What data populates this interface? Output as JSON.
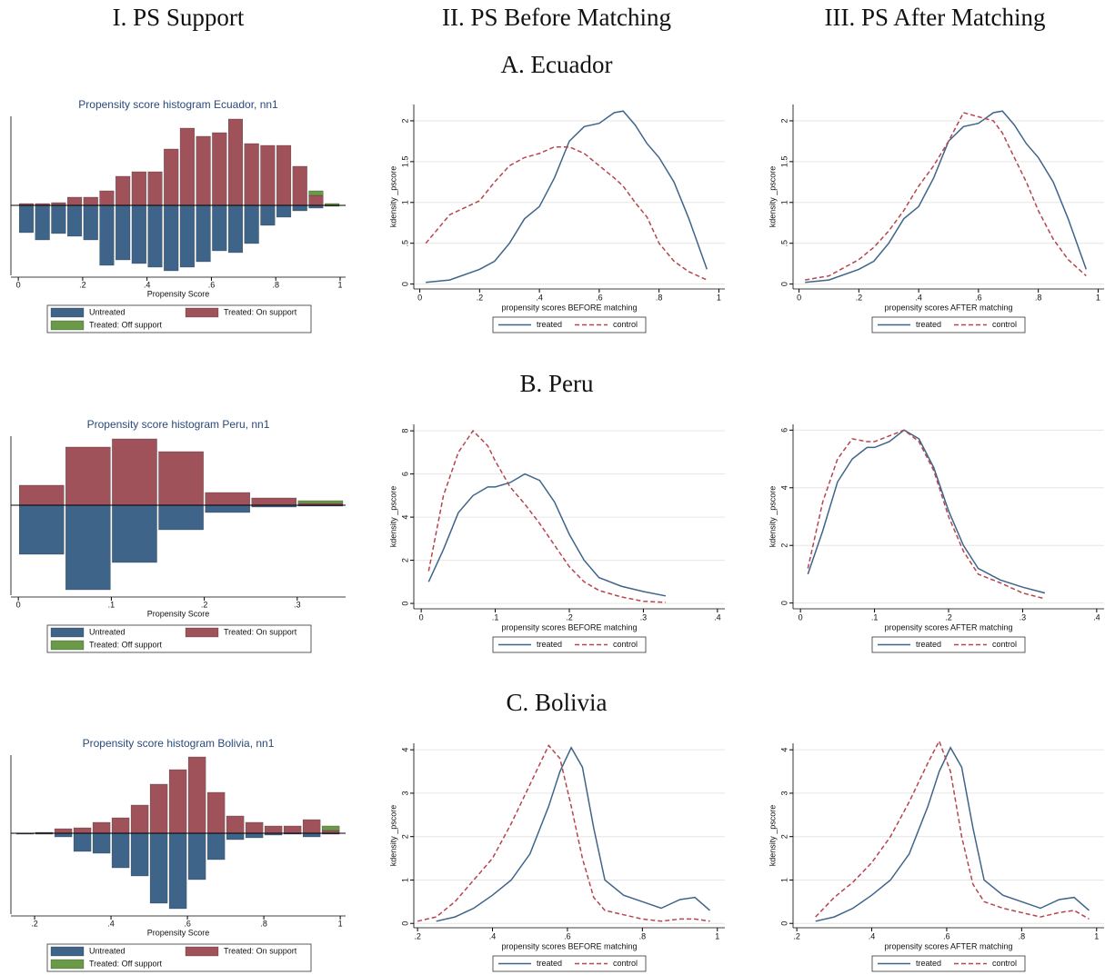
{
  "column_titles": [
    "I. PS Support",
    "II. PS Before Matching",
    "III. PS After Matching"
  ],
  "row_titles": [
    "A. Ecuador",
    "B. Peru",
    "C. Bolivia"
  ],
  "chart_data": [
    {
      "type": "histogram",
      "title": "Propensity score histogram Ecuador, nn1",
      "xlabel": "Propensity Score",
      "bins": [
        0,
        0.05,
        0.1,
        0.15,
        0.2,
        0.25,
        0.3,
        0.35,
        0.4,
        0.45,
        0.5,
        0.55,
        0.6,
        0.65,
        0.7,
        0.75,
        0.8,
        0.85,
        0.9,
        0.95,
        1
      ],
      "series": [
        {
          "name": "Untreated",
          "color": "#3e6489",
          "values": [
            -30,
            -38,
            -31,
            -34,
            -38,
            -66,
            -60,
            -64,
            -68,
            -72,
            -68,
            -62,
            -50,
            -52,
            -42,
            -22,
            -13,
            -6,
            -3,
            -1
          ]
        },
        {
          "name": "Treated: On support",
          "color": "#a0525a",
          "values": [
            2,
            2,
            3,
            9,
            9,
            16,
            32,
            37,
            37,
            62,
            85,
            76,
            80,
            95,
            68,
            66,
            66,
            43,
            11,
            0
          ]
        },
        {
          "name": "Treated: Off support",
          "color": "#6a9a48",
          "values": [
            0,
            0,
            0,
            0,
            0,
            0,
            0,
            0,
            0,
            0,
            0,
            0,
            0,
            0,
            0,
            0,
            0,
            0,
            5,
            2
          ]
        }
      ],
      "xlim": [
        -0.023,
        1.017
      ],
      "ylim": [
        -77,
        98
      ],
      "xticks": [
        0,
        {
          "value": 0.2,
          "label": ".2"
        },
        {
          "value": 0.4,
          "label": ".4"
        },
        {
          "value": 0.6,
          "label": ".6"
        },
        {
          "value": 0.8,
          "label": ".8"
        },
        1
      ]
    },
    {
      "type": "line",
      "ylabel": "kdensity _pscore",
      "xlabel": "propensity scores BEFORE matching",
      "x": [
        0.02,
        0.1,
        0.2,
        0.25,
        0.3,
        0.35,
        0.4,
        0.45,
        0.5,
        0.55,
        0.6,
        0.65,
        0.68,
        0.72,
        0.76,
        0.8,
        0.85,
        0.9,
        0.96
      ],
      "series": [
        {
          "name": "treated",
          "color": "#3e6489",
          "dash": "solid",
          "values": [
            0.02,
            0.05,
            0.18,
            0.28,
            0.5,
            0.8,
            0.95,
            1.3,
            1.75,
            1.93,
            1.97,
            2.1,
            2.12,
            1.95,
            1.72,
            1.55,
            1.25,
            0.8,
            0.18
          ]
        },
        {
          "name": "control",
          "color": "#b5454e",
          "dash": "dashed",
          "values": [
            0.5,
            0.85,
            1.02,
            1.25,
            1.45,
            1.55,
            1.6,
            1.68,
            1.68,
            1.6,
            1.45,
            1.3,
            1.2,
            1.0,
            0.82,
            0.5,
            0.28,
            0.15,
            0.05
          ]
        }
      ],
      "xlim": [
        -0.02,
        1.02
      ],
      "ylim": [
        -0.06,
        2.2
      ],
      "grid": true,
      "xticks": [
        0,
        {
          "value": 0.2,
          "label": ".2"
        },
        {
          "value": 0.4,
          "label": ".4"
        },
        {
          "value": 0.6,
          "label": ".6"
        },
        {
          "value": 0.8,
          "label": ".8"
        },
        1
      ],
      "yticks": [
        0,
        {
          "value": 0.5,
          "label": ".5"
        },
        1,
        1.5,
        2
      ]
    },
    {
      "type": "line",
      "ylabel": "kdensity _pscore",
      "xlabel": "propensity scores AFTER matching",
      "x": [
        0.02,
        0.1,
        0.2,
        0.25,
        0.3,
        0.35,
        0.4,
        0.45,
        0.5,
        0.55,
        0.6,
        0.65,
        0.68,
        0.72,
        0.76,
        0.8,
        0.85,
        0.9,
        0.96
      ],
      "series": [
        {
          "name": "treated",
          "color": "#3e6489",
          "dash": "solid",
          "values": [
            0.02,
            0.05,
            0.18,
            0.28,
            0.5,
            0.8,
            0.95,
            1.3,
            1.75,
            1.93,
            1.97,
            2.1,
            2.12,
            1.95,
            1.72,
            1.55,
            1.25,
            0.8,
            0.18
          ]
        },
        {
          "name": "control",
          "color": "#b5454e",
          "dash": "dashed",
          "values": [
            0.05,
            0.1,
            0.3,
            0.45,
            0.65,
            0.9,
            1.2,
            1.45,
            1.75,
            2.1,
            2.05,
            2.0,
            1.85,
            1.55,
            1.25,
            0.9,
            0.55,
            0.3,
            0.1
          ]
        }
      ],
      "xlim": [
        -0.02,
        1.02
      ],
      "ylim": [
        -0.06,
        2.2
      ],
      "grid": true,
      "xticks": [
        0,
        {
          "value": 0.2,
          "label": ".2"
        },
        {
          "value": 0.4,
          "label": ".4"
        },
        {
          "value": 0.6,
          "label": ".6"
        },
        {
          "value": 0.8,
          "label": ".8"
        },
        1
      ],
      "yticks": [
        0,
        {
          "value": 0.5,
          "label": ".5"
        },
        1,
        1.5,
        2
      ]
    },
    {
      "type": "histogram",
      "title": "Propensity score histogram Peru, nn1",
      "xlabel": "Propensity Score",
      "bins": [
        0,
        0.05,
        0.1,
        0.15,
        0.2,
        0.25,
        0.3,
        0.35
      ],
      "series": [
        {
          "name": "Untreated",
          "color": "#3e6489",
          "values": [
            -54,
            -93,
            -63,
            -27,
            -8,
            -2,
            -1
          ]
        },
        {
          "name": "Treated: On support",
          "color": "#a0525a",
          "values": [
            22,
            64,
            73,
            59,
            14,
            8,
            2
          ]
        },
        {
          "name": "Treated: Off support",
          "color": "#6a9a48",
          "values": [
            0,
            0,
            0,
            0,
            0,
            0,
            3
          ]
        }
      ],
      "xlim": [
        -0.008,
        0.352
      ],
      "ylim": [
        -99,
        76
      ],
      "xticks": [
        0,
        {
          "value": 0.1,
          "label": ".1"
        },
        {
          "value": 0.2,
          "label": ".2"
        },
        {
          "value": 0.3,
          "label": ".3"
        }
      ]
    },
    {
      "type": "line",
      "ylabel": "kdensity _pscore",
      "xlabel": "propensity scores BEFORE matching",
      "x": [
        0.01,
        0.03,
        0.05,
        0.07,
        0.09,
        0.1,
        0.12,
        0.14,
        0.16,
        0.18,
        0.2,
        0.22,
        0.24,
        0.27,
        0.3,
        0.33
      ],
      "series": [
        {
          "name": "treated",
          "color": "#3e6489",
          "dash": "solid",
          "values": [
            1.0,
            2.5,
            4.2,
            5.0,
            5.4,
            5.4,
            5.6,
            6.0,
            5.7,
            4.7,
            3.2,
            2.0,
            1.2,
            0.8,
            0.55,
            0.35
          ]
        },
        {
          "name": "control",
          "color": "#b5454e",
          "dash": "dashed",
          "values": [
            1.5,
            5.0,
            7.0,
            8.0,
            7.3,
            6.6,
            5.4,
            4.6,
            3.7,
            2.7,
            1.7,
            1.0,
            0.6,
            0.3,
            0.1,
            0.05
          ]
        }
      ],
      "xlim": [
        -0.01,
        0.41
      ],
      "ylim": [
        -0.25,
        8.3
      ],
      "grid": true,
      "xticks": [
        0,
        {
          "value": 0.1,
          "label": ".1"
        },
        {
          "value": 0.2,
          "label": ".2"
        },
        {
          "value": 0.3,
          "label": ".3"
        },
        {
          "value": 0.4,
          "label": ".4"
        }
      ],
      "yticks": [
        0,
        2,
        4,
        6,
        8
      ]
    },
    {
      "type": "line",
      "ylabel": "kdensity _pscore",
      "xlabel": "propensity scores AFTER matching",
      "x": [
        0.01,
        0.03,
        0.05,
        0.07,
        0.09,
        0.1,
        0.12,
        0.14,
        0.16,
        0.18,
        0.2,
        0.22,
        0.24,
        0.27,
        0.3,
        0.33
      ],
      "series": [
        {
          "name": "treated",
          "color": "#3e6489",
          "dash": "solid",
          "values": [
            1.0,
            2.5,
            4.2,
            5.0,
            5.4,
            5.4,
            5.6,
            6.0,
            5.7,
            4.7,
            3.2,
            2.0,
            1.2,
            0.8,
            0.55,
            0.35
          ]
        },
        {
          "name": "control",
          "color": "#b5454e",
          "dash": "dashed",
          "values": [
            1.2,
            3.5,
            5.0,
            5.7,
            5.6,
            5.6,
            5.8,
            6.0,
            5.6,
            4.6,
            3.0,
            1.8,
            1.0,
            0.7,
            0.35,
            0.15
          ]
        }
      ],
      "xlim": [
        -0.01,
        0.41
      ],
      "ylim": [
        -0.2,
        6.2
      ],
      "grid": true,
      "xticks": [
        0,
        {
          "value": 0.1,
          "label": ".1"
        },
        {
          "value": 0.2,
          "label": ".2"
        },
        {
          "value": 0.3,
          "label": ".3"
        },
        {
          "value": 0.4,
          "label": ".4"
        }
      ],
      "yticks": [
        0,
        2,
        4,
        6
      ]
    },
    {
      "type": "histogram",
      "title": "Propensity score histogram Bolivia, nn1",
      "xlabel": "Propensity Score",
      "bins": [
        0.15,
        0.2,
        0.25,
        0.3,
        0.35,
        0.4,
        0.45,
        0.5,
        0.55,
        0.6,
        0.65,
        0.7,
        0.75,
        0.8,
        0.85,
        0.9,
        0.95,
        1
      ],
      "series": [
        {
          "name": "Untreated",
          "color": "#3e6489",
          "values": [
            -1,
            -1,
            -4,
            -20,
            -22,
            -38,
            -47,
            -77,
            -83,
            -51,
            -29,
            -7,
            -5,
            -2,
            -1,
            -4,
            -1
          ]
        },
        {
          "name": "Treated: On support",
          "color": "#a0525a",
          "values": [
            0,
            1,
            5,
            6,
            12,
            17,
            31,
            54,
            70,
            84,
            45,
            19,
            12,
            8,
            8,
            15,
            3
          ]
        },
        {
          "name": "Treated: Off support",
          "color": "#6a9a48",
          "values": [
            0,
            0,
            0,
            0,
            0,
            0,
            0,
            0,
            0,
            0,
            0,
            0,
            0,
            0,
            0,
            0,
            5
          ]
        }
      ],
      "xlim": [
        0.138,
        1.014
      ],
      "ylim": [
        -89,
        86
      ],
      "xticks": [
        {
          "value": 0.2,
          "label": ".2"
        },
        {
          "value": 0.4,
          "label": ".4"
        },
        {
          "value": 0.6,
          "label": ".6"
        },
        {
          "value": 0.8,
          "label": ".8"
        },
        1
      ]
    },
    {
      "type": "line",
      "ylabel": "kdensity _pscore",
      "xlabel": "propensity scores BEFORE matching",
      "x": [
        0.2,
        0.25,
        0.3,
        0.35,
        0.4,
        0.45,
        0.5,
        0.55,
        0.58,
        0.61,
        0.64,
        0.67,
        0.7,
        0.75,
        0.8,
        0.85,
        0.9,
        0.94,
        0.98
      ],
      "series": [
        {
          "name": "treated",
          "color": "#3e6489",
          "dash": "solid",
          "values": [
            null,
            0.05,
            0.15,
            0.35,
            0.65,
            1.0,
            1.6,
            2.7,
            3.5,
            4.05,
            3.6,
            2.2,
            1.0,
            0.65,
            0.5,
            0.35,
            0.55,
            0.6,
            0.3
          ]
        },
        {
          "name": "control",
          "color": "#b5454e",
          "dash": "dashed",
          "values": [
            0.05,
            0.15,
            0.5,
            1.0,
            1.5,
            2.3,
            3.2,
            4.1,
            3.8,
            2.7,
            1.5,
            0.6,
            0.3,
            0.2,
            0.1,
            0.05,
            0.1,
            0.1,
            0.05
          ]
        }
      ],
      "xlim": [
        0.19,
        1.02
      ],
      "ylim": [
        -0.1,
        4.15
      ],
      "grid": true,
      "xticks": [
        {
          "value": 0.2,
          "label": ".2"
        },
        {
          "value": 0.4,
          "label": ".4"
        },
        {
          "value": 0.6,
          "label": ".6"
        },
        {
          "value": 0.8,
          "label": ".8"
        },
        1
      ],
      "yticks": [
        0,
        1,
        2,
        3,
        4
      ]
    },
    {
      "type": "line",
      "ylabel": "kdensity _pscore",
      "xlabel": "propensity scores AFTER matching",
      "x": [
        0.2,
        0.25,
        0.3,
        0.35,
        0.4,
        0.45,
        0.5,
        0.55,
        0.58,
        0.61,
        0.64,
        0.67,
        0.7,
        0.75,
        0.8,
        0.85,
        0.9,
        0.94,
        0.98
      ],
      "series": [
        {
          "name": "treated",
          "color": "#3e6489",
          "dash": "solid",
          "values": [
            null,
            0.05,
            0.15,
            0.35,
            0.65,
            1.0,
            1.6,
            2.7,
            3.5,
            4.05,
            3.6,
            2.2,
            1.0,
            0.65,
            0.5,
            0.35,
            0.55,
            0.6,
            0.3
          ]
        },
        {
          "name": "control",
          "color": "#b5454e",
          "dash": "dashed",
          "values": [
            null,
            0.15,
            0.6,
            0.95,
            1.4,
            2.0,
            2.8,
            3.7,
            4.2,
            3.5,
            2.0,
            0.9,
            0.5,
            0.35,
            0.25,
            0.15,
            0.25,
            0.3,
            0.1
          ]
        }
      ],
      "xlim": [
        0.19,
        1.02
      ],
      "ylim": [
        -0.1,
        4.15
      ],
      "grid": true,
      "xticks": [
        {
          "value": 0.2,
          "label": ".2"
        },
        {
          "value": 0.4,
          "label": ".4"
        },
        {
          "value": 0.6,
          "label": ".6"
        },
        {
          "value": 0.8,
          "label": ".8"
        },
        1
      ],
      "yticks": [
        0,
        1,
        2,
        3,
        4
      ]
    }
  ]
}
